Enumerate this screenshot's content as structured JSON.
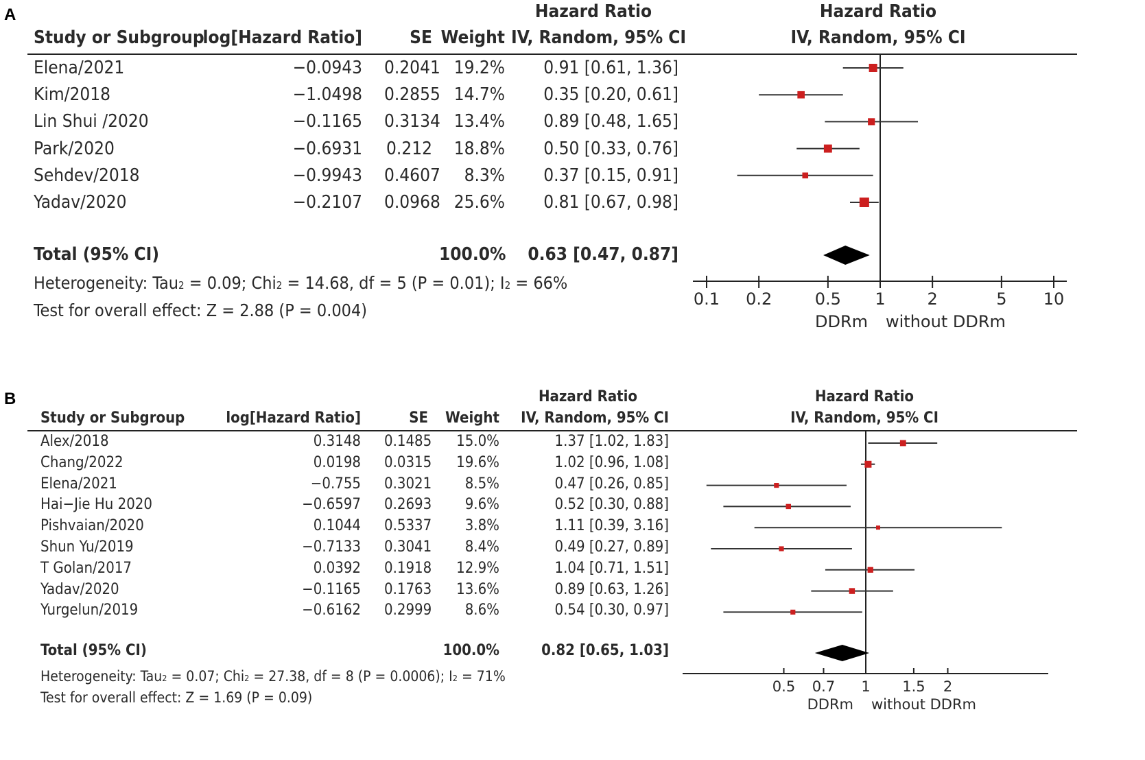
{
  "chart_data": [
    {
      "panel": "A",
      "type": "forest",
      "axis_scale": "log",
      "header": {
        "study": "Study or Subgroup",
        "loghr": "log[Hazard Ratio]",
        "se": "SE",
        "weight": "Weight",
        "hr_top": "Hazard Ratio",
        "hr_method": "IV, Random, 95% CI",
        "plot_top": "Hazard Ratio",
        "plot_method": "IV, Random, 95% CI"
      },
      "studies": [
        {
          "name": "Elena/2021",
          "loghr": "−0.0943",
          "se": "0.2041",
          "weight": "19.2%",
          "ci": "0.91 [0.61, 1.36]",
          "hr": 0.91,
          "lo": 0.61,
          "hi": 1.36,
          "w": 19.2
        },
        {
          "name": "Kim/2018",
          "loghr": "−1.0498",
          "se": "0.2855",
          "weight": "14.7%",
          "ci": "0.35 [0.20, 0.61]",
          "hr": 0.35,
          "lo": 0.2,
          "hi": 0.61,
          "w": 14.7
        },
        {
          "name": "Lin Shui /2020",
          "loghr": "−0.1165",
          "se": "0.3134",
          "weight": "13.4%",
          "ci": "0.89 [0.48, 1.65]",
          "hr": 0.89,
          "lo": 0.48,
          "hi": 1.65,
          "w": 13.4
        },
        {
          "name": "Park/2020",
          "loghr": "−0.6931",
          "se": "0.212",
          "weight": "18.8%",
          "ci": "0.50 [0.33, 0.76]",
          "hr": 0.5,
          "lo": 0.33,
          "hi": 0.76,
          "w": 18.8
        },
        {
          "name": "Sehdev/2018",
          "loghr": "−0.9943",
          "se": "0.4607",
          "weight": "8.3%",
          "ci": "0.37 [0.15, 0.91]",
          "hr": 0.37,
          "lo": 0.15,
          "hi": 0.91,
          "w": 8.3
        },
        {
          "name": "Yadav/2020",
          "loghr": "−0.2107",
          "se": "0.0968",
          "weight": "25.6%",
          "ci": "0.81 [0.67, 0.98]",
          "hr": 0.81,
          "lo": 0.67,
          "hi": 0.98,
          "w": 25.6
        }
      ],
      "total": {
        "label": "Total (95% CI)",
        "weight": "100.0%",
        "ci": "0.63 [0.47, 0.87]",
        "hr": 0.63,
        "lo": 0.47,
        "hi": 0.87
      },
      "heterogeneity": {
        "prefix": "Heterogeneity: Tau",
        "chi": "= 0.09; Chi",
        "df": "= 14.68, df = 5 (P = 0.01); I",
        "i2": "= 66%"
      },
      "overall": "Test for overall effect: Z = 2.88 (P = 0.004)",
      "ticks": [
        0.1,
        0.2,
        0.5,
        1,
        2,
        5,
        10
      ],
      "tick_labels": [
        "0.1",
        "0.2",
        "0.5",
        "1",
        "2",
        "5",
        "10"
      ],
      "xlim": [
        0.1,
        10
      ],
      "left_label": "DDRm",
      "right_label": "without DDRm"
    },
    {
      "panel": "B",
      "type": "forest",
      "axis_scale": "log",
      "header": {
        "study": "Study or Subgroup",
        "loghr": "log[Hazard Ratio]",
        "se": "SE",
        "weight": "Weight",
        "hr_top": "Hazard Ratio",
        "hr_method": "IV, Random, 95% CI",
        "plot_top": "Hazard Ratio",
        "plot_method": "IV, Random, 95% CI"
      },
      "studies": [
        {
          "name": "Alex/2018",
          "loghr": "0.3148",
          "se": "0.1485",
          "weight": "15.0%",
          "ci": "1.37 [1.02, 1.83]",
          "hr": 1.37,
          "lo": 1.02,
          "hi": 1.83,
          "w": 15.0
        },
        {
          "name": "Chang/2022",
          "loghr": "0.0198",
          "se": "0.0315",
          "weight": "19.6%",
          "ci": "1.02 [0.96, 1.08]",
          "hr": 1.02,
          "lo": 0.96,
          "hi": 1.08,
          "w": 19.6
        },
        {
          "name": "Elena/2021",
          "loghr": "−0.755",
          "se": "0.3021",
          "weight": "8.5%",
          "ci": "0.47 [0.26, 0.85]",
          "hr": 0.47,
          "lo": 0.26,
          "hi": 0.85,
          "w": 8.5
        },
        {
          "name": "Hai−Jie Hu 2020",
          "loghr": "−0.6597",
          "se": "0.2693",
          "weight": "9.6%",
          "ci": "0.52 [0.30, 0.88]",
          "hr": 0.52,
          "lo": 0.3,
          "hi": 0.88,
          "w": 9.6
        },
        {
          "name": "Pishvaian/2020",
          "loghr": "0.1044",
          "se": "0.5337",
          "weight": "3.8%",
          "ci": "1.11 [0.39, 3.16]",
          "hr": 1.11,
          "lo": 0.39,
          "hi": 3.16,
          "w": 3.8
        },
        {
          "name": "Shun Yu/2019",
          "loghr": "−0.7133",
          "se": "0.3041",
          "weight": "8.4%",
          "ci": "0.49 [0.27, 0.89]",
          "hr": 0.49,
          "lo": 0.27,
          "hi": 0.89,
          "w": 8.4
        },
        {
          "name": "T Golan/2017",
          "loghr": "0.0392",
          "se": "0.1918",
          "weight": "12.9%",
          "ci": "1.04 [0.71, 1.51]",
          "hr": 1.04,
          "lo": 0.71,
          "hi": 1.51,
          "w": 12.9
        },
        {
          "name": "Yadav/2020",
          "loghr": "−0.1165",
          "se": "0.1763",
          "weight": "13.6%",
          "ci": "0.89 [0.63, 1.26]",
          "hr": 0.89,
          "lo": 0.63,
          "hi": 1.26,
          "w": 13.6
        },
        {
          "name": "Yurgelun/2019",
          "loghr": "−0.6162",
          "se": "0.2999",
          "weight": "8.6%",
          "ci": "0.54 [0.30, 0.97]",
          "hr": 0.54,
          "lo": 0.3,
          "hi": 0.97,
          "w": 8.6
        }
      ],
      "total": {
        "label": "Total (95% CI)",
        "weight": "100.0%",
        "ci": "0.82 [0.65, 1.03]",
        "hr": 0.82,
        "lo": 0.65,
        "hi": 1.03
      },
      "heterogeneity": {
        "prefix": "Heterogeneity: Tau",
        "chi": "= 0.07; Chi",
        "df": "= 27.38, df = 8 (P = 0.0006); I",
        "i2": "= 71%"
      },
      "overall": "Test for overall effect: Z = 1.69 (P = 0.09)",
      "ticks": [
        0.5,
        0.7,
        1,
        1.5,
        2
      ],
      "tick_labels": [
        "0.5",
        "0.7",
        "1",
        "1.5",
        "2"
      ],
      "left_label": "DDRm",
      "right_label": "without DDRm"
    }
  ],
  "labels": {
    "panel_a": "A",
    "panel_b": "B",
    "sup": "2"
  }
}
